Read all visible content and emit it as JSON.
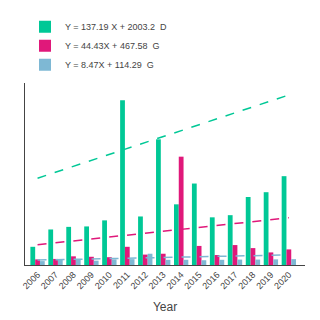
{
  "chart_data": {
    "type": "bar",
    "x_label": "Year",
    "x": [
      2006,
      2007,
      2008,
      2009,
      2010,
      2011,
      2012,
      2013,
      2014,
      2015,
      2016,
      2017,
      2018,
      2019,
      2020
    ],
    "series": [
      {
        "name": "Y = 137.19 X + 2003.2  D",
        "color": "#00C896",
        "values": [
          420,
          820,
          880,
          890,
          1030,
          3800,
          1120,
          2900,
          1400,
          1880,
          1100,
          1150,
          1570,
          1680,
          2050
        ]
      },
      {
        "name": "Y = 44.43X + 467.58  G",
        "color": "#E0187A",
        "values": [
          130,
          140,
          200,
          190,
          180,
          420,
          240,
          260,
          2500,
          440,
          230,
          460,
          390,
          290,
          360
        ]
      },
      {
        "name": "Y = 8.47X + 114.29  G",
        "color": "#7EB8D4",
        "values": [
          90,
          120,
          120,
          100,
          130,
          135,
          260,
          120,
          120,
          110,
          120,
          125,
          125,
          130,
          135
        ]
      },
      {
        "type": "line",
        "line_style": "dashed",
        "color": "#00C896",
        "x": [
          2006,
          2020
        ],
        "values": [
          2003.2,
          3923.86
        ]
      },
      {
        "type": "line",
        "line_style": "dashed",
        "color": "#E0187A",
        "x": [
          2006,
          2020
        ],
        "values": [
          467.58,
          1089.6
        ]
      },
      {
        "type": "line",
        "line_style": "dashed",
        "color": "#7EB8D4",
        "x": [
          2006,
          2020
        ],
        "values": [
          114.29,
          232.87
        ]
      }
    ],
    "xlim": [
      2005.3,
      2020.9
    ],
    "xticks": [
      2006,
      2007,
      2008,
      2009,
      2010,
      2011,
      2012,
      2013,
      2014,
      2015,
      2016,
      2017,
      2018,
      2019,
      2020
    ],
    "ylim": [
      0,
      4200
    ],
    "yticks": [],
    "tick_labels": "x",
    "grid": false,
    "legend": "top"
  }
}
